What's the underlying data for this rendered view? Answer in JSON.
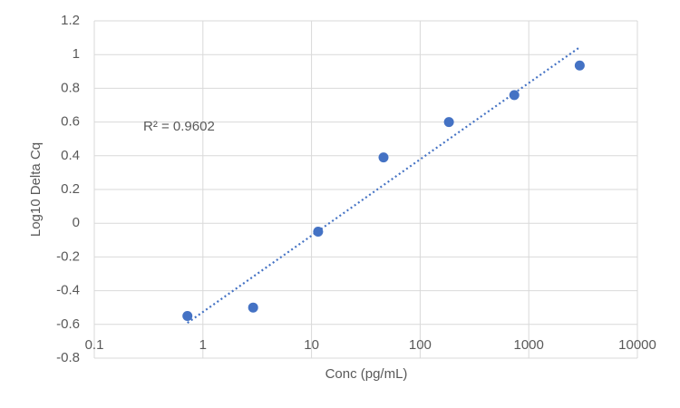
{
  "chart_data": {
    "type": "scatter",
    "x_label": "Conc (pg/mL)",
    "y_label": "Log10 Delta Cq",
    "annotation": "R² = 0.9602",
    "series": [
      {
        "color": "#4472c4",
        "x": [
          0.72,
          2.9,
          11.5,
          46,
          184,
          736,
          2944
        ],
        "values": [
          -0.55,
          -0.5,
          -0.05,
          0.39,
          0.6,
          0.76,
          0.935
        ]
      }
    ],
    "trendline": "linear",
    "x_log": true,
    "xlim": [
      0.1,
      10000
    ],
    "xticks": [
      0.1,
      1,
      10,
      100,
      1000,
      10000
    ],
    "ylim": [
      -0.8,
      1.2
    ],
    "yticks": [
      -0.8,
      -0.6,
      -0.4,
      -0.2,
      0,
      0.2,
      0.4,
      0.6,
      0.8,
      1,
      1.2
    ],
    "grid": true
  }
}
